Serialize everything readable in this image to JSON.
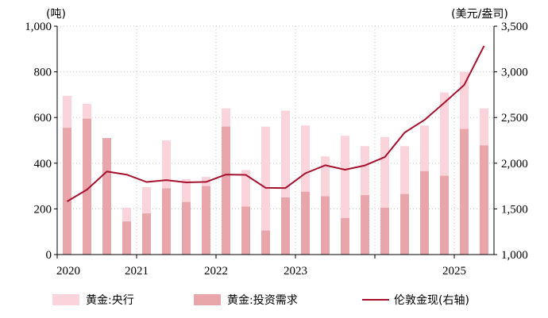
{
  "chart_data": {
    "type": "bar+line",
    "units": {
      "left": "(吨)",
      "right": "(美元/盎司)"
    },
    "colors": {
      "central_bank": "#fbd3da",
      "investment": "#e8a6ab",
      "price_line": "#a6102d"
    },
    "legend": {
      "position": "bottom",
      "items": [
        {
          "key": "central_bank",
          "label": "黄金:央行"
        },
        {
          "key": "investment",
          "label": "黄金:投资需求"
        },
        {
          "key": "price_line",
          "label": "伦敦金现(右轴)"
        }
      ]
    },
    "x_tick_labels": [
      "2020",
      "2021",
      "2022",
      "2023",
      "2025"
    ],
    "y_left": {
      "min": 0,
      "max": 1000,
      "ticks": [
        "0",
        "200",
        "400",
        "600",
        "800",
        "1,000"
      ],
      "tick_values": [
        0,
        200,
        400,
        600,
        800,
        1000
      ]
    },
    "y_right": {
      "min": 1000,
      "max": 3500,
      "ticks": [
        "1,000",
        "1,500",
        "2,000",
        "2,500",
        "3,000",
        "3,500"
      ],
      "tick_values": [
        1000,
        1500,
        2000,
        2500,
        3000,
        3500
      ]
    },
    "grid": true,
    "quarters": [
      "2020Q1",
      "2020Q2",
      "2020Q3",
      "2020Q4",
      "2021Q1",
      "2021Q2",
      "2021Q3",
      "2021Q4",
      "2022Q1",
      "2022Q2",
      "2022Q3",
      "2022Q4",
      "2023Q1",
      "2023Q2",
      "2023Q3",
      "2023Q4",
      "2024Q1",
      "2024Q2",
      "2024Q3",
      "2024Q4",
      "2025Q1",
      "2025Q2"
    ],
    "series": [
      {
        "key": "central_bank",
        "name": "黄金:央行",
        "kind": "bar",
        "values": [
          695,
          660,
          510,
          205,
          295,
          500,
          330,
          340,
          640,
          370,
          560,
          630,
          565,
          430,
          520,
          475,
          515,
          475,
          565,
          710,
          800,
          640
        ]
      },
      {
        "key": "investment",
        "name": "黄金:投资需求",
        "kind": "bar",
        "values": [
          555,
          595,
          510,
          145,
          180,
          290,
          230,
          300,
          560,
          210,
          105,
          250,
          275,
          255,
          160,
          260,
          205,
          265,
          365,
          345,
          550,
          478
        ]
      },
      {
        "key": "price_line",
        "name": "伦敦金现(右轴)",
        "kind": "line",
        "axis": "right",
        "values": [
          1582,
          1711,
          1909,
          1875,
          1794,
          1815,
          1790,
          1795,
          1876,
          1872,
          1730,
          1728,
          1890,
          1977,
          1929,
          1976,
          2067,
          2336,
          2474,
          2662,
          2857,
          3285
        ]
      }
    ]
  }
}
